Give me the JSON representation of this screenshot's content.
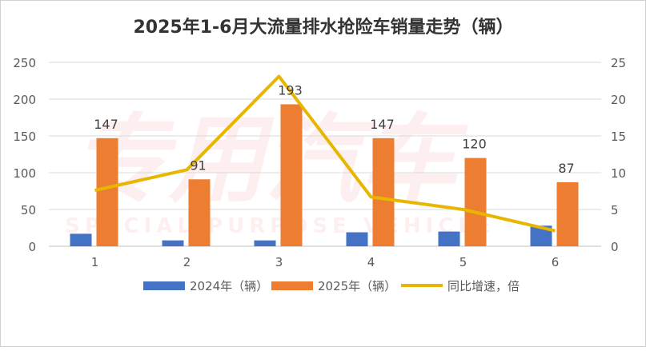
{
  "chart_data": {
    "type": "bar+line",
    "title": "2025年1-6月大流量排水抢险车销量走势（辆）",
    "categories": [
      "1",
      "2",
      "3",
      "4",
      "5",
      "6"
    ],
    "series": [
      {
        "name": "2024年（辆）",
        "type": "bar",
        "axis": "left",
        "color": "#4472C4",
        "values": [
          17,
          8,
          8,
          19,
          20,
          28
        ]
      },
      {
        "name": "2025年（辆）",
        "type": "bar",
        "axis": "left",
        "color": "#ED7D31",
        "values": [
          147,
          91,
          193,
          147,
          120,
          87
        ],
        "data_labels": [
          "147",
          "91",
          "193",
          "147",
          "120",
          "87"
        ]
      },
      {
        "name": "同比增速，倍",
        "type": "line",
        "axis": "right",
        "color": "#E8B600",
        "values": [
          7.6,
          10.4,
          23.1,
          6.7,
          5.0,
          2.1
        ]
      }
    ],
    "ylim_left": [
      0,
      250
    ],
    "yticks_left": [
      "0",
      "50",
      "100",
      "150",
      "200",
      "250"
    ],
    "ylim_right": [
      0,
      25
    ],
    "yticks_right": [
      "0",
      "5",
      "10",
      "15",
      "20",
      "25"
    ],
    "grid": true,
    "legend": "bottom"
  }
}
